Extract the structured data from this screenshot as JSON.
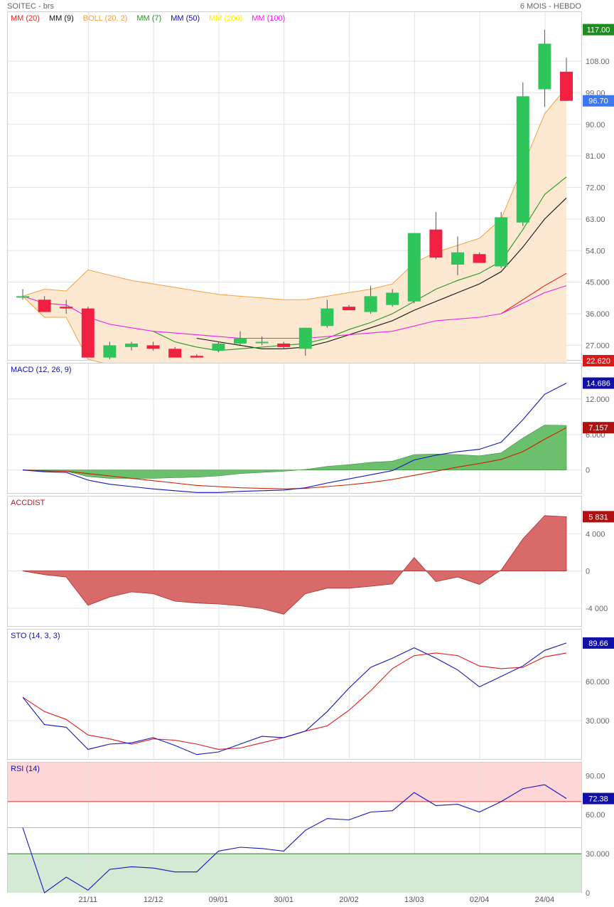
{
  "header": {
    "left": "SOITEC - brs",
    "right": "6 MOIS - HEBDO"
  },
  "colors": {
    "up": "#2ec55a",
    "down": "#f02040",
    "boll": "#f5a040",
    "boll_fill": "#fde8d2",
    "ma20": "#e8281e",
    "ma9": "#111111",
    "ma7": "#1f9a1f",
    "ma50": "#1010aa",
    "ma200": "#ffee00",
    "ma100": "#ee22ee",
    "macd": "#1515c0",
    "signal": "#cc2200",
    "macd_hist": "#5cb85c",
    "accdist": "#d86a6a",
    "sto_k": "#1515c0",
    "sto_d": "#e01a1a",
    "rsi": "#1515c0",
    "grid": "#e3e3e3"
  },
  "price_panel": {
    "legend": [
      {
        "label": "MM (20)",
        "color": "#e8281e"
      },
      {
        "label": "MM (9)",
        "color": "#111111"
      },
      {
        "label": "BOLL (20, 2)",
        "color": "#f5a040"
      },
      {
        "label": "MM (7)",
        "color": "#1f9a1f"
      },
      {
        "label": "MM (50)",
        "color": "#1010aa"
      },
      {
        "label": "MM (200)",
        "color": "#ffee00"
      },
      {
        "label": "MM (100)",
        "color": "#ee22ee"
      }
    ],
    "y_ticks": [
      "108.00",
      "99.00",
      "90.00",
      "81.00",
      "72.00",
      "63.00",
      "54.00",
      "45.000",
      "36.000",
      "27.000"
    ],
    "tags": [
      {
        "text": "117.00",
        "value": 117.0,
        "bg": "#1e8c1e"
      },
      {
        "text": "96.70",
        "value": 96.7,
        "bg": "#3c78f0"
      },
      {
        "text": "22.620",
        "value": 22.62,
        "bg": "#d91818"
      }
    ]
  },
  "macd_panel": {
    "title": "MACD (12, 26, 9)",
    "y_ticks": [
      "12.000",
      "6.000",
      "0"
    ],
    "tags": [
      {
        "text": "14.686",
        "value": 14.686,
        "bg": "#1010a8"
      },
      {
        "text": "7.157",
        "value": 7.157,
        "bg": "#b01010"
      }
    ]
  },
  "accdist_panel": {
    "title": "ACCDIST",
    "y_ticks": [
      "4 000",
      "0",
      "-4 000"
    ],
    "tags": [
      {
        "text": "5 831",
        "value": 5831,
        "bg": "#b01010"
      }
    ]
  },
  "sto_panel": {
    "title": "STO (14, 3, 3)",
    "y_ticks": [
      "60.000",
      "30.000"
    ],
    "tags": [
      {
        "text": "89.66",
        "value": 89.66,
        "bg": "#1010a8"
      }
    ]
  },
  "rsi_panel": {
    "title": "RSI (14)",
    "y_ticks": [
      "90.00",
      "60.00",
      "30.000",
      "0"
    ],
    "tags": [
      {
        "text": "72.38",
        "value": 72.38,
        "bg": "#1010a8"
      }
    ]
  },
  "x_labels": [
    {
      "label": "21/11",
      "index": 3
    },
    {
      "label": "12/12",
      "index": 6
    },
    {
      "label": "09/01",
      "index": 9
    },
    {
      "label": "30/01",
      "index": 12
    },
    {
      "label": "20/02",
      "index": 15
    },
    {
      "label": "13/03",
      "index": 18
    },
    {
      "label": "02/04",
      "index": 21
    },
    {
      "label": "24/04",
      "index": 24
    }
  ],
  "chart_data": [
    {
      "type": "candlestick",
      "title": "SOITEC - brs",
      "period": "6 MOIS - HEBDO",
      "ylim": [
        22.62,
        122
      ],
      "candles": [
        {
          "o": 41.0,
          "h": 43.0,
          "l": 40.0,
          "c": 41.0
        },
        {
          "o": 40.0,
          "h": 41.0,
          "l": 36.5,
          "c": 36.5
        },
        {
          "o": 38.0,
          "h": 40.0,
          "l": 36.0,
          "c": 37.5
        },
        {
          "o": 37.5,
          "h": 38.0,
          "l": 23.5,
          "c": 23.5
        },
        {
          "o": 23.5,
          "h": 28.0,
          "l": 23.0,
          "c": 27.0
        },
        {
          "o": 26.5,
          "h": 28.0,
          "l": 25.5,
          "c": 27.5
        },
        {
          "o": 27.0,
          "h": 28.0,
          "l": 25.5,
          "c": 26.0
        },
        {
          "o": 26.0,
          "h": 26.5,
          "l": 23.5,
          "c": 23.5
        },
        {
          "o": 24.0,
          "h": 24.5,
          "l": 23.5,
          "c": 23.5
        },
        {
          "o": 25.5,
          "h": 28.0,
          "l": 25.0,
          "c": 27.5
        },
        {
          "o": 27.5,
          "h": 31.0,
          "l": 27.0,
          "c": 29.0
        },
        {
          "o": 28.0,
          "h": 29.5,
          "l": 27.0,
          "c": 28.0
        },
        {
          "o": 27.5,
          "h": 28.0,
          "l": 26.0,
          "c": 26.5
        },
        {
          "o": 26.0,
          "h": 32.0,
          "l": 24.0,
          "c": 32.0
        },
        {
          "o": 32.5,
          "h": 40.0,
          "l": 32.0,
          "c": 37.5
        },
        {
          "o": 38.0,
          "h": 38.5,
          "l": 37.0,
          "c": 37.0
        },
        {
          "o": 36.5,
          "h": 44.0,
          "l": 36.0,
          "c": 41.0
        },
        {
          "o": 38.5,
          "h": 43.0,
          "l": 38.0,
          "c": 42.0
        },
        {
          "o": 39.5,
          "h": 59.0,
          "l": 39.0,
          "c": 59.0
        },
        {
          "o": 60.0,
          "h": 65.0,
          "l": 51.5,
          "c": 52.0
        },
        {
          "o": 50.0,
          "h": 58.0,
          "l": 47.0,
          "c": 53.5
        },
        {
          "o": 53.0,
          "h": 53.5,
          "l": 50.5,
          "c": 50.5
        },
        {
          "o": 49.5,
          "h": 65.0,
          "l": 49.0,
          "c": 63.5
        },
        {
          "o": 62.0,
          "h": 102.0,
          "l": 61.0,
          "c": 98.0
        },
        {
          "o": 100.0,
          "h": 117.0,
          "l": 95.0,
          "c": 113.0
        },
        {
          "o": 105.0,
          "h": 109.0,
          "l": 96.7,
          "c": 96.7
        }
      ],
      "series": [
        {
          "name": "MM (20)",
          "values": [
            null,
            null,
            null,
            null,
            null,
            null,
            null,
            null,
            null,
            null,
            null,
            null,
            null,
            null,
            null,
            null,
            null,
            null,
            null,
            null,
            null,
            null,
            36.0,
            40.0,
            44.0,
            47.5
          ]
        },
        {
          "name": "MM (9)",
          "values": [
            null,
            null,
            null,
            null,
            null,
            null,
            null,
            null,
            29.0,
            28.0,
            27.0,
            26.0,
            26.0,
            26.5,
            28.0,
            30.0,
            32.0,
            34.0,
            37.0,
            39.5,
            42.0,
            44.5,
            48.0,
            55.0,
            63.0,
            69.0
          ]
        },
        {
          "name": "MM (7)",
          "values": [
            null,
            null,
            null,
            null,
            null,
            null,
            31.0,
            28.0,
            26.5,
            25.5,
            26.0,
            26.5,
            27.0,
            27.5,
            29.0,
            31.5,
            33.5,
            36.0,
            39.5,
            43.0,
            45.5,
            47.5,
            51.0,
            60.0,
            70.0,
            75.0
          ]
        },
        {
          "name": "MM (100)",
          "values": [
            41.0,
            39.0,
            38.5,
            35.0,
            33.0,
            32.0,
            31.0,
            30.5,
            30.0,
            29.5,
            29.0,
            29.0,
            29.0,
            29.0,
            29.5,
            30.0,
            30.5,
            31.0,
            32.5,
            34.0,
            34.5,
            35.0,
            36.0,
            39.0,
            42.0,
            44.0
          ]
        },
        {
          "name": "BOLL upper",
          "values": [
            41.0,
            43.0,
            42.5,
            48.5,
            47.0,
            45.5,
            44.5,
            43.5,
            42.5,
            41.5,
            41.0,
            40.5,
            40.0,
            40.0,
            41.0,
            42.0,
            43.0,
            44.5,
            50.5,
            53.5,
            55.5,
            57.5,
            63.0,
            78.0,
            93.0,
            100.5
          ]
        },
        {
          "name": "BOLL lower",
          "values": [
            41.0,
            35.0,
            35.0,
            23.0,
            21.5,
            20.5,
            20.0,
            19.5,
            19.0,
            19.0,
            18.5,
            18.5,
            18.5,
            18.5,
            18.5,
            18.5,
            18.5,
            18.5,
            18.5,
            18.5,
            18.5,
            18.5,
            18.5,
            18.5,
            18.5,
            18.5
          ]
        }
      ]
    },
    {
      "type": "line",
      "title": "MACD (12, 26, 9)",
      "ylim": [
        -4,
        18
      ],
      "series": [
        {
          "name": "MACD",
          "values": [
            0,
            -0.3,
            -0.4,
            -1.7,
            -2.4,
            -2.8,
            -3.2,
            -3.5,
            -3.8,
            -3.8,
            -3.6,
            -3.5,
            -3.4,
            -3.0,
            -2.2,
            -1.5,
            -0.8,
            -0.1,
            1.7,
            2.5,
            3.1,
            3.5,
            4.7,
            8.5,
            12.8,
            14.686
          ]
        },
        {
          "name": "Signal",
          "values": [
            0,
            -0.1,
            -0.2,
            -0.6,
            -1.0,
            -1.4,
            -1.8,
            -2.2,
            -2.6,
            -2.8,
            -3.0,
            -3.1,
            -3.2,
            -3.1,
            -2.8,
            -2.5,
            -2.1,
            -1.6,
            -0.9,
            -0.2,
            0.5,
            1.1,
            1.8,
            3.1,
            5.2,
            7.157
          ]
        },
        {
          "name": "Histogram",
          "values": [
            0,
            -0.2,
            -0.2,
            -1.1,
            -1.4,
            -1.4,
            -1.4,
            -1.3,
            -1.2,
            -1.0,
            -0.6,
            -0.4,
            -0.2,
            0.1,
            0.6,
            0.9,
            1.3,
            1.5,
            2.6,
            2.7,
            2.6,
            2.4,
            2.9,
            5.4,
            7.6,
            7.53
          ]
        }
      ]
    },
    {
      "type": "area",
      "title": "ACCDIST",
      "ylim": [
        -6000,
        8000
      ],
      "series": [
        {
          "name": "ACCDIST",
          "values": [
            0,
            -400,
            -650,
            -3700,
            -2800,
            -2250,
            -2450,
            -3250,
            -3450,
            -3550,
            -3750,
            -4050,
            -4650,
            -2450,
            -1850,
            -1850,
            -1650,
            -1400,
            1450,
            -1150,
            -650,
            -1450,
            100,
            3450,
            5950,
            5831
          ]
        }
      ]
    },
    {
      "type": "line",
      "title": "STO (14, 3, 3)",
      "ylim": [
        0,
        100
      ],
      "series": [
        {
          "name": "%K",
          "values": [
            48,
            27,
            25,
            8,
            12,
            13,
            17,
            11,
            4,
            6,
            12,
            18,
            17,
            22,
            37,
            55,
            71,
            78,
            86,
            78,
            69,
            56,
            64,
            72,
            84,
            89.66
          ]
        },
        {
          "name": "%D",
          "values": [
            48,
            37,
            31,
            19,
            16,
            12,
            16,
            15,
            12,
            8,
            9,
            13,
            17,
            22,
            26,
            38,
            53,
            70,
            80,
            82,
            80,
            72,
            70,
            71,
            79,
            82
          ]
        }
      ]
    },
    {
      "type": "line",
      "title": "RSI (14)",
      "ylim": [
        0,
        100
      ],
      "bands": {
        "overbought": 70,
        "mid": 50,
        "oversold": 30
      },
      "series": [
        {
          "name": "RSI",
          "values": [
            50,
            0,
            12,
            2,
            18,
            20,
            19,
            16,
            16,
            32,
            35,
            34,
            32,
            48,
            57,
            56,
            62,
            63,
            77,
            67,
            68,
            62,
            70,
            80,
            83,
            72.38
          ]
        }
      ]
    }
  ]
}
